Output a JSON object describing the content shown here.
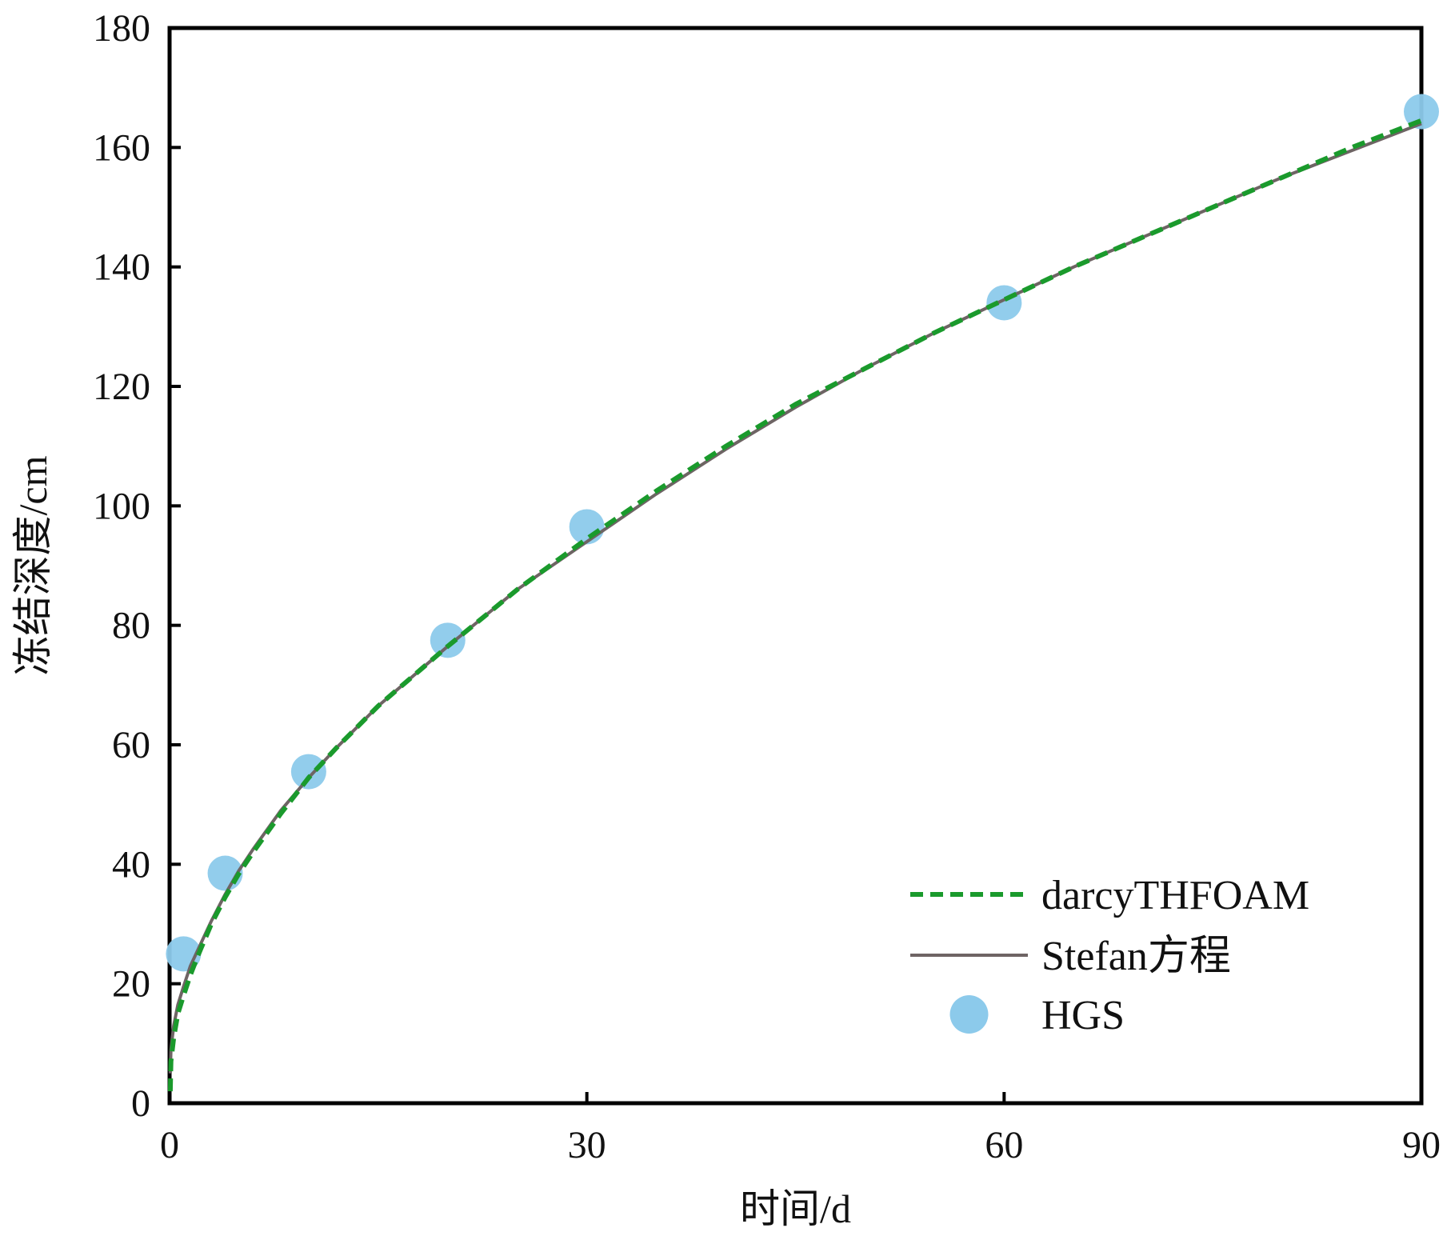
{
  "chart_data": {
    "type": "line",
    "xlabel": "时间/d",
    "ylabel": "冻结深度/cm",
    "xlim": [
      0,
      90
    ],
    "ylim": [
      0,
      180
    ],
    "xticks": [
      0,
      30,
      60,
      90
    ],
    "yticks": [
      0,
      20,
      40,
      60,
      80,
      100,
      120,
      140,
      160,
      180
    ],
    "grid": false,
    "legend_position": "bottom-right",
    "series": [
      {
        "name": "darcyTHFOAM",
        "style": "dashed",
        "color": "#1a9a2c",
        "x": [
          0.05,
          0.1,
          0.3,
          0.6,
          1,
          1.5,
          2,
          3,
          4,
          5,
          6,
          8,
          10,
          12,
          15,
          18,
          20,
          25,
          30,
          35,
          40,
          45,
          50,
          55,
          60,
          65,
          70,
          75,
          80,
          85,
          90
        ],
        "y": [
          2,
          7,
          11,
          15,
          18,
          21.5,
          24.5,
          30,
          34.5,
          38.5,
          42,
          48.5,
          54.5,
          59.5,
          66.5,
          72.5,
          76.5,
          86,
          94.5,
          102.5,
          110,
          117,
          123,
          129,
          134.5,
          140,
          145,
          150,
          155,
          160,
          164.5
        ]
      },
      {
        "name": "Stefan方程",
        "style": "solid",
        "color": "#6e6464",
        "x": [
          0.05,
          0.1,
          0.3,
          0.6,
          1,
          1.5,
          2,
          3,
          4,
          5,
          6,
          8,
          10,
          12,
          15,
          18,
          20,
          25,
          30,
          35,
          40,
          45,
          50,
          55,
          60,
          65,
          70,
          75,
          80,
          85,
          90
        ],
        "y": [
          5,
          9,
          13,
          16.5,
          19.5,
          23,
          25.5,
          30.5,
          35,
          39,
          42.5,
          49,
          54.5,
          59.5,
          66.5,
          72.5,
          76.5,
          86,
          94,
          102,
          109.5,
          116.5,
          123,
          129,
          134.5,
          140,
          145,
          150,
          155,
          159.5,
          164
        ]
      },
      {
        "name": "HGS",
        "style": "markers",
        "color": "#8ccaeb",
        "x": [
          1,
          4,
          10,
          20,
          30,
          60,
          90
        ],
        "y": [
          25,
          38.5,
          55.5,
          77.5,
          96.5,
          134,
          166
        ]
      }
    ]
  }
}
